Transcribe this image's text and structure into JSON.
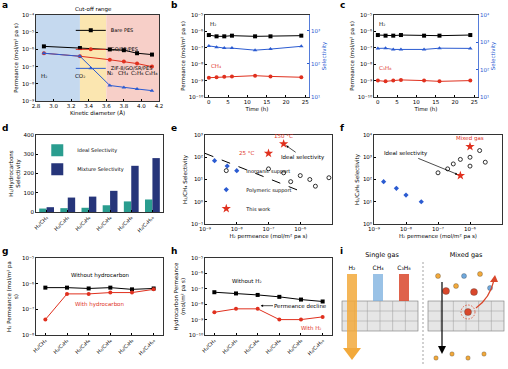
{
  "chart_data": [
    {
      "panel": "a",
      "type": "line",
      "x_label": "Kinetic diameter (Å)",
      "y_label": "Permeance (mol/m² pa s)",
      "log": "y",
      "xlim": [
        2.8,
        4.2
      ],
      "xticks": [
        2.8,
        {
          "value": 3,
          "label": "3.0"
        },
        3.2,
        3.4,
        3.6,
        3.8,
        {
          "value": 4,
          "label": "4.0"
        },
        4.2
      ],
      "ylim": [
        1e-09,
        0.0001
      ],
      "yticks": [
        {
          "value": 1e-09,
          "label": "10⁻⁹"
        },
        {
          "value": 1e-08,
          "label": "10⁻⁸"
        },
        {
          "value": 1e-07,
          "label": "10⁻⁷"
        },
        {
          "value": 1e-06,
          "label": "10⁻⁶"
        },
        {
          "value": 1e-05,
          "label": "10⁻⁵"
        },
        {
          "value": 0.0001,
          "label": "10⁻⁴"
        }
      ],
      "x": [
        2.89,
        3.3,
        3.64,
        3.8,
        3.95,
        4.12
      ],
      "legend": "upper right",
      "series": [
        {
          "name": "Bare PES",
          "color": "#000000",
          "marker": "square",
          "values": [
            1.5e-06,
            1.2e-06,
            1e-06,
            9e-07,
            6e-07,
            5e-07
          ]
        },
        {
          "name": "GO/SR/PES",
          "color": "#e0301e",
          "marker": "circle",
          "values": [
            6e-07,
            4e-07,
            2.5e-07,
            2e-07,
            1.5e-07,
            1e-07
          ]
        },
        {
          "name": "ZIF-8/GO/SR/PES",
          "color": "#2b5bd1",
          "marker": "triangle-up",
          "values": [
            6e-07,
            4e-07,
            8e-09,
            6e-09,
            5e-09,
            4e-09
          ]
        }
      ],
      "regions": [
        {
          "from": 2.8,
          "to": 3.3,
          "color": "#c5d9ef"
        },
        {
          "from": 3.3,
          "to": 3.6,
          "color": "#fbe6b0",
          "label": "Cut-off range"
        },
        {
          "from": 3.6,
          "to": 4.2,
          "color": "#f7cfc8"
        }
      ],
      "annotations": [
        {
          "text": "H₂",
          "x": 2.89,
          "y": 3e-08
        },
        {
          "text": "CO₂",
          "x": 3.3,
          "y": 3e-08
        },
        {
          "text": "N₂",
          "x": 3.64,
          "y": 4e-08
        },
        {
          "text": "CH₄",
          "x": 3.8,
          "y": 4e-08
        },
        {
          "text": "C₂H₆",
          "x": 3.95,
          "y": 4e-08
        },
        {
          "text": "C₃H₈",
          "x": 4.12,
          "y": 4e-08
        }
      ]
    },
    {
      "panel": "b",
      "type": "line",
      "x_label": "Time (h)",
      "y_label": "Permeance (mol/m² pa s)",
      "y2_label": "Selectivity",
      "log": "y",
      "xlim": [
        -1,
        26
      ],
      "xticks": [
        0,
        5,
        10,
        15,
        20,
        25
      ],
      "ylim": [
        1e-10,
        1e-05
      ],
      "yticks": [
        {
          "value": 1e-10,
          "label": "10⁻¹⁰"
        },
        {
          "value": 1e-09,
          "label": "10⁻⁹"
        },
        {
          "value": 1e-08,
          "label": "10⁻⁸"
        },
        {
          "value": 1e-07,
          "label": "10⁻⁷"
        },
        {
          "value": 1e-06,
          "label": "10⁻⁶"
        },
        {
          "value": 1e-05,
          "label": "10⁻⁵"
        }
      ],
      "y2lim": [
        10,
        3000
      ],
      "y2ticks": [
        {
          "value": 10,
          "label": "10¹"
        },
        {
          "value": 100,
          "label": "10²"
        },
        {
          "value": 1000,
          "label": "10³"
        }
      ],
      "x": [
        0,
        2,
        4,
        6,
        12,
        16,
        24
      ],
      "series": [
        {
          "color": "#000000",
          "marker": "square",
          "values": [
            6e-07,
            5e-07,
            5e-07,
            5.5e-07,
            5e-07,
            5e-07,
            5.5e-07
          ]
        },
        {
          "color": "#e0301e",
          "marker": "circle",
          "values": [
            1.5e-09,
            1.6e-09,
            1.7e-09,
            1.8e-09,
            2e-09,
            1.8e-09,
            1.6e-09
          ]
        },
        {
          "color": "#2b5bd1",
          "marker": "triangle-up",
          "axis": "y2",
          "values": [
            350,
            320,
            300,
            300,
            260,
            280,
            340
          ]
        }
      ],
      "annotations": [
        {
          "text": "H₂",
          "x": 1,
          "y": 3e-06
        },
        {
          "text": "CH₄",
          "x": 2,
          "y": 8e-09,
          "color": "#e0301e"
        }
      ]
    },
    {
      "panel": "c",
      "type": "line",
      "x_label": "Time (h)",
      "y_label": "Permeance (mol/m² pa s)",
      "y2_label": "Selectivity",
      "log": "y",
      "xlim": [
        -1,
        26
      ],
      "xticks": [
        0,
        5,
        10,
        15,
        20,
        25
      ],
      "ylim": [
        1e-10,
        1e-05
      ],
      "yticks": [
        {
          "value": 1e-10,
          "label": "10⁻¹⁰"
        },
        {
          "value": 1e-09,
          "label": "10⁻⁹"
        },
        {
          "value": 1e-08,
          "label": "10⁻⁸"
        },
        {
          "value": 1e-07,
          "label": "10⁻⁷"
        },
        {
          "value": 1e-06,
          "label": "10⁻⁶"
        },
        {
          "value": 1e-05,
          "label": "10⁻⁵"
        }
      ],
      "y2lim": [
        10,
        10000
      ],
      "y2ticks": [
        {
          "value": 10,
          "label": "10¹"
        },
        {
          "value": 100,
          "label": "10²"
        },
        {
          "value": 1000,
          "label": "10³"
        },
        {
          "value": 10000,
          "label": "10⁴"
        }
      ],
      "x": [
        0,
        2,
        4,
        6,
        12,
        16,
        24
      ],
      "series": [
        {
          "color": "#000000",
          "marker": "square",
          "values": [
            6e-07,
            5.5e-07,
            5.5e-07,
            6e-07,
            5.5e-07,
            5.5e-07,
            6e-07
          ]
        },
        {
          "color": "#e0301e",
          "marker": "circle",
          "values": [
            1e-09,
            9e-10,
            1e-09,
            1.1e-09,
            1e-09,
            9e-10,
            1e-09
          ]
        },
        {
          "color": "#2b5bd1",
          "marker": "triangle-up",
          "axis": "y2",
          "values": [
            600,
            610,
            550,
            545,
            550,
            610,
            600
          ]
        }
      ],
      "annotations": [
        {
          "text": "H₂",
          "x": 1,
          "y": 3e-06
        },
        {
          "text": "C₃H₈",
          "x": 2,
          "y": 6e-09,
          "color": "#e0301e"
        }
      ]
    },
    {
      "panel": "d",
      "type": "bar",
      "y_label": "H₂/Hydrocarbons Selectivity",
      "categories": [
        "H₂/CH₄",
        "H₂/C₂H₄",
        "H₂/C₂H₆",
        "H₂/C₃H₆",
        "H₂/C₃H₈",
        "H₂/C₄H₁₀"
      ],
      "ylim": [
        0,
        400
      ],
      "yticks": [
        0,
        100,
        200,
        300,
        400
      ],
      "legend": "upper left",
      "series": [
        {
          "name": "Ideal Selectivity",
          "color": "#2a9d8f",
          "values": [
            18,
            20,
            22,
            35,
            55,
            65
          ]
        },
        {
          "name": "Mixture Selectivity",
          "color": "#26357a",
          "values": [
            25,
            75,
            80,
            110,
            240,
            280
          ]
        }
      ]
    },
    {
      "panel": "e",
      "type": "scatter",
      "x_label": "H₂ permeance (mol/m² pa s)",
      "y_label": "H₂/CH₄ Selectivity",
      "log": true,
      "xlim": [
        1e-09,
        1e-05
      ],
      "xticks": [
        {
          "value": 1e-09,
          "label": "10⁻⁹"
        },
        {
          "value": 1e-08,
          "label": "10⁻⁸"
        },
        {
          "value": 1e-07,
          "label": "10⁻⁷"
        },
        {
          "value": 1e-06,
          "label": "10⁻⁶"
        },
        {
          "value": 1e-05,
          "label": "10⁻⁵"
        }
      ],
      "ylim": [
        0.1,
        1000
      ],
      "yticks": [
        {
          "value": 0.1,
          "label": "10⁻¹"
        },
        {
          "value": 1,
          "label": "10⁰"
        },
        {
          "value": 10,
          "label": "10¹"
        },
        {
          "value": 100,
          "label": "10²"
        },
        {
          "value": 1000,
          "label": "10³"
        }
      ],
      "legend": "lower left",
      "series": [
        {
          "name": "Inorganic support",
          "color": "#000000",
          "marker": "circle-open",
          "x": [
            1e-07,
            3e-07,
            5e-07,
            1e-06,
            2e-06,
            3e-06,
            8e-06
          ],
          "values": [
            30,
            20,
            8,
            15,
            10,
            5,
            12
          ]
        },
        {
          "name": "Polymeric support",
          "color": "#2b5bd1",
          "marker": "diamond",
          "x": [
            2e-09,
            5e-09,
            1e-08
          ],
          "values": [
            70,
            40,
            25
          ]
        },
        {
          "name": "This work",
          "color": "#e0301e",
          "marker": "star",
          "x": [
            3e-07,
            1e-07
          ],
          "values": [
            400,
            150
          ]
        },
        {
          "type": "line",
          "color": "#000000",
          "marker": "none",
          "line_style": "dash",
          "x": [
            1e-09,
            1e-06
          ],
          "values": [
            150,
            3
          ]
        }
      ],
      "annotations": [
        {
          "text": "150 °C",
          "x": 3e-07,
          "y": 900,
          "color": "#e0301e"
        },
        {
          "text": "25 °C",
          "x": 2e-08,
          "y": 150,
          "color": "#e0301e"
        },
        {
          "text": "Ideal selectivity",
          "x": 1.2e-06,
          "y": 100,
          "arrow_to": {
            "x": 3e-07,
            "y": 400
          }
        }
      ]
    },
    {
      "panel": "f",
      "type": "scatter",
      "x_label": "H₂ permeance (mol/m² pa s)",
      "y_label": "H₂/C₃H₈ Selectivity",
      "log": true,
      "xlim": [
        1e-09,
        1e-05
      ],
      "xticks": [
        {
          "value": 1e-09,
          "label": "10⁻⁹"
        },
        {
          "value": 1e-08,
          "label": "10⁻⁸"
        },
        {
          "value": 1e-07,
          "label": "10⁻⁷"
        },
        {
          "value": 1e-06,
          "label": "10⁻⁶"
        },
        {
          "value": 1e-05,
          "label": "10⁻⁵"
        }
      ],
      "ylim": [
        1,
        10000
      ],
      "yticks": [
        {
          "value": 1,
          "label": "10⁰"
        },
        {
          "value": 10,
          "label": "10¹"
        },
        {
          "value": 100,
          "label": "10²"
        },
        {
          "value": 1000,
          "label": "10³"
        },
        {
          "value": 10000,
          "label": "10⁴"
        }
      ],
      "series": [
        {
          "color": "#000000",
          "marker": "circle-open",
          "x": [
            1e-07,
            2e-07,
            3e-07,
            5e-07,
            1e-06,
            1e-06,
            2e-06,
            3e-06
          ],
          "values": [
            200,
            300,
            500,
            800,
            400,
            1000,
            2000,
            600
          ]
        },
        {
          "color": "#2b5bd1",
          "marker": "diamond",
          "x": [
            2e-09,
            5e-09,
            1e-08,
            3e-08
          ],
          "values": [
            80,
            40,
            20,
            10
          ]
        },
        {
          "color": "#e0301e",
          "marker": "star",
          "x": [
            1e-06,
            5e-07
          ],
          "values": [
            3000,
            150
          ]
        }
      ],
      "annotations": [
        {
          "text": "Mixed gas",
          "x": 1e-06,
          "y": 7000,
          "color": "#e0301e"
        },
        {
          "text": "Ideal selectivity",
          "x": 1e-08,
          "y": 1500,
          "arrow_to": {
            "x": 5e-07,
            "y": 150
          }
        }
      ]
    },
    {
      "panel": "g",
      "type": "line",
      "y_label": "H₂ Permeance (mol/m² pa s)",
      "log": "y",
      "categories": [
        "H₂/CH₄",
        "H₂/C₂H₄",
        "H₂/C₂H₆",
        "H₂/C₃H₆",
        "H₂/C₃H₈",
        "H₂/C₄H₁₀"
      ],
      "ylim": [
        1e-08,
        1e-05
      ],
      "yticks": [
        {
          "value": 1e-08,
          "label": "10⁻⁸"
        },
        {
          "value": 1e-07,
          "label": "10⁻⁷"
        },
        {
          "value": 1e-06,
          "label": "10⁻⁶"
        },
        {
          "value": 1e-05,
          "label": "10⁻⁵"
        }
      ],
      "series": [
        {
          "color": "#000000",
          "marker": "square",
          "values": [
            7e-07,
            7e-07,
            6.5e-07,
            7e-07,
            6e-07,
            6.5e-07
          ]
        },
        {
          "color": "#e0301e",
          "marker": "circle",
          "values": [
            4e-08,
            4e-07,
            4e-07,
            4.5e-07,
            4.5e-07,
            6e-07
          ]
        }
      ],
      "annotations": [
        {
          "text": "Without hydrocarbon",
          "x": 2.5,
          "y": 2e-06
        },
        {
          "text": "With hydrocarbon",
          "x": 2.5,
          "y": 1.5e-07,
          "color": "#e0301e"
        }
      ]
    },
    {
      "panel": "h",
      "type": "line",
      "y_label": "Hydrocarbon Permeance (mol/m² pa s)",
      "log": "y",
      "categories": [
        "H₂/CH₄",
        "H₂/C₂H₄",
        "H₂/C₂H₆",
        "H₂/C₃H₆",
        "H₂/C₃H₈",
        "H₂/C₄H₁₀"
      ],
      "ylim": [
        1e-10,
        1e-05
      ],
      "yticks": [
        {
          "value": 1e-10,
          "label": "10⁻¹⁰"
        },
        {
          "value": 1e-09,
          "label": "10⁻⁹"
        },
        {
          "value": 1e-08,
          "label": "10⁻⁸"
        },
        {
          "value": 1e-07,
          "label": "10⁻⁷"
        },
        {
          "value": 1e-06,
          "label": "10⁻⁶"
        },
        {
          "value": 1e-05,
          "label": "10⁻⁵"
        }
      ],
      "series": [
        {
          "color": "#000000",
          "marker": "square",
          "values": [
            6e-08,
            5e-08,
            4e-08,
            3e-08,
            2e-08,
            1.5e-08
          ]
        },
        {
          "color": "#e0301e",
          "marker": "circle",
          "values": [
            3e-09,
            5e-09,
            5e-09,
            1e-09,
            1e-09,
            1.5e-09
          ]
        }
      ],
      "annotations": [
        {
          "text": "Without H₂",
          "x": 1.5,
          "y": 3e-07
        },
        {
          "text": "With H₂",
          "x": 4.5,
          "y": 3e-10,
          "color": "#e0301e"
        },
        {
          "text": "Permeance decline",
          "x": 4,
          "y": 8e-09,
          "arrow_to": {
            "x": 2,
            "y": 8e-09
          }
        }
      ]
    }
  ],
  "schematic": {
    "panel": "i",
    "titles": [
      "Single gas",
      "Mixed gas"
    ],
    "gases": [
      {
        "name": "H₂",
        "color": "#f2a93b"
      },
      {
        "name": "CH₄",
        "color": "#6fa8dc"
      },
      {
        "name": "C₃H₈",
        "color": "#d9472b"
      }
    ]
  }
}
